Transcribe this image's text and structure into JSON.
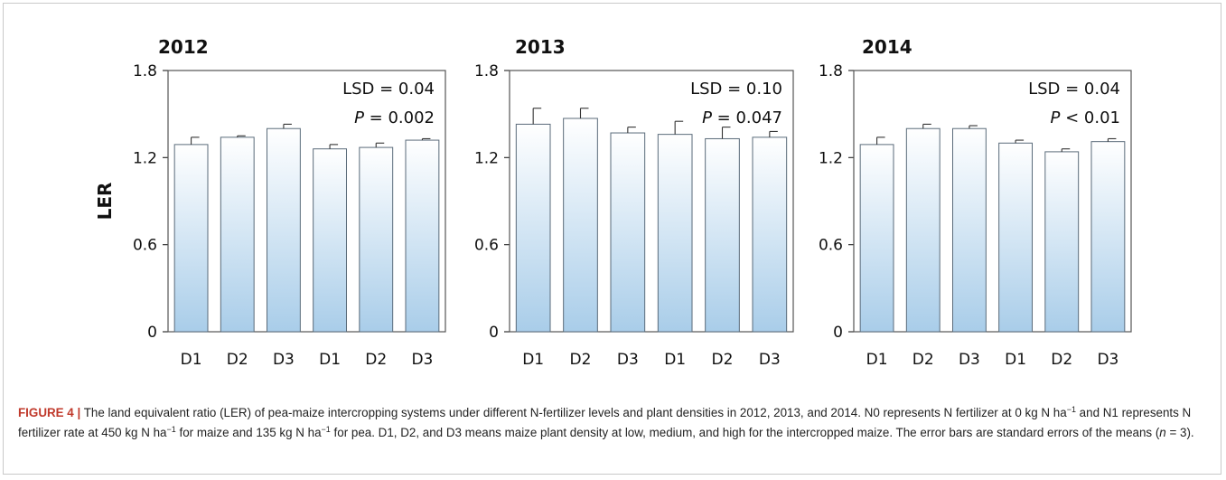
{
  "chart_data": [
    {
      "type": "bar",
      "title": "2012",
      "categories": [
        "D1",
        "D2",
        "D3",
        "D1",
        "D2",
        "D3"
      ],
      "values": [
        1.29,
        1.34,
        1.4,
        1.26,
        1.27,
        1.32
      ],
      "errors": [
        0.05,
        0.01,
        0.03,
        0.03,
        0.03,
        0.01
      ],
      "ylabel": "LER",
      "ylim": [
        0,
        1.8
      ],
      "yticks": [
        "0",
        "0.6",
        "1.2",
        "1.8"
      ],
      "annotation": {
        "lsd": "LSD = 0.04",
        "p_label": "P",
        "p_value": " = 0.002"
      }
    },
    {
      "type": "bar",
      "title": "2013",
      "categories": [
        "D1",
        "D2",
        "D3",
        "D1",
        "D2",
        "D3"
      ],
      "values": [
        1.43,
        1.47,
        1.37,
        1.36,
        1.33,
        1.34
      ],
      "errors": [
        0.11,
        0.07,
        0.04,
        0.09,
        0.08,
        0.04
      ],
      "ylabel": "",
      "ylim": [
        0,
        1.8
      ],
      "yticks": [
        "0",
        "0.6",
        "1.2",
        "1.8"
      ],
      "annotation": {
        "lsd": "LSD = 0.10",
        "p_label": "P",
        "p_value": " = 0.047"
      }
    },
    {
      "type": "bar",
      "title": "2014",
      "categories": [
        "D1",
        "D2",
        "D3",
        "D1",
        "D2",
        "D3"
      ],
      "values": [
        1.29,
        1.4,
        1.4,
        1.3,
        1.24,
        1.31
      ],
      "errors": [
        0.05,
        0.03,
        0.02,
        0.02,
        0.02,
        0.02
      ],
      "ylabel": "",
      "ylim": [
        0,
        1.8
      ],
      "yticks": [
        "0",
        "0.6",
        "1.2",
        "1.8"
      ],
      "annotation": {
        "lsd": "LSD = 0.04",
        "p_label": "P",
        "p_value": " < 0.01"
      }
    }
  ],
  "caption": {
    "figure_label": "FIGURE 4",
    "separator": "|",
    "t1": " The land equivalent ratio (LER) of pea-maize intercropping systems under different N-fertilizer levels and plant densities in 2012, 2013, and 2014. N0 represents N fertilizer at 0 kg N ha",
    "sup1": "−1",
    "t2": " and N1 represents N fertilizer rate at 450 kg N ha",
    "sup2": "−1",
    "t3": " for maize and 135 kg N ha",
    "sup3": "−1",
    "t4": " for pea. D1, D2, and D3 means maize plant density at low, medium, and high for the intercropped maize. The error bars are standard errors of the means (",
    "n_italic": "n",
    "t5": " = 3)."
  }
}
